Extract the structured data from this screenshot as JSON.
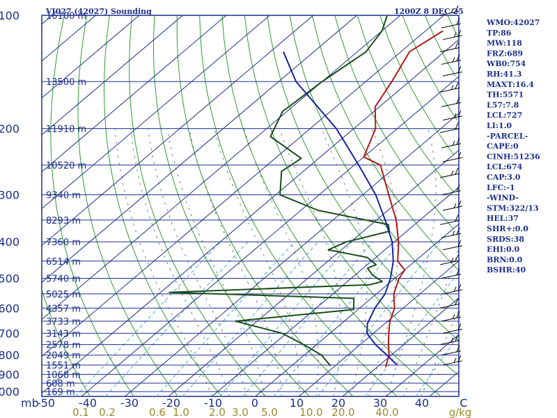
{
  "header": {
    "title": "VI027 (42027) Sounding",
    "time": "1200Z  8 DEC 25"
  },
  "colors": {
    "isobar": "#1c2f8a",
    "isotherm": "#1c2f8a",
    "dry_adiabat": "#2e9b2e",
    "moist_adiabat": "#777777",
    "mixing_ratio": "#4aa6d8",
    "temperature": "#b01818",
    "dewpoint": "#1a4d1a",
    "parcel": "#1622a0",
    "wind_barbs": "#000000"
  },
  "indices": [
    "WMO:42027",
    "TP:86",
    "MW:118",
    "FRZ:689",
    "WB0:754",
    "RH:41.3",
    "MAXT:16.4",
    "TH:5571",
    "L57:7.8",
    "LCL:727",
    "LI:1.0",
    "-PARCEL-",
    "CAPE:0",
    "CINH:51236",
    "LCL:674",
    "CAP:3.0",
    "LFC:-1",
    "-WIND-",
    "STM:322/13",
    "HEL:37",
    "SHR+:0.0",
    "SRDS:38",
    "EHI:0.0",
    "BRN:0.0",
    "BSHR:40"
  ],
  "chart_data": {
    "type": "line",
    "subtype": "skew-T log-P sounding",
    "pressure_labels": [
      "100",
      "200",
      "300",
      "400",
      "500",
      "600",
      "700",
      "800",
      "900",
      "1000"
    ],
    "pressure_unit_label": "mb",
    "height_labels": [
      {
        "p": 100,
        "text": "16100 m"
      },
      {
        "p": 150,
        "text": "13500 m"
      },
      {
        "p": 200,
        "text": "11910 m"
      },
      {
        "p": 250,
        "text": "10520 m"
      },
      {
        "p": 300,
        "text": "9340 m"
      },
      {
        "p": 350,
        "text": "8293 m"
      },
      {
        "p": 400,
        "text": "7360 m"
      },
      {
        "p": 450,
        "text": "6514 m"
      },
      {
        "p": 500,
        "text": "5740 m"
      },
      {
        "p": 550,
        "text": "5025 m"
      },
      {
        "p": 600,
        "text": "4357 m"
      },
      {
        "p": 650,
        "text": "3733 m"
      },
      {
        "p": 700,
        "text": "3143 m"
      },
      {
        "p": 750,
        "text": "2578 m"
      },
      {
        "p": 800,
        "text": "2049 m"
      },
      {
        "p": 850,
        "text": "1551 m"
      },
      {
        "p": 900,
        "text": "1068 m"
      },
      {
        "p": 950,
        "text": "608 m"
      },
      {
        "p": 1000,
        "text": "169 m"
      }
    ],
    "temperature_labels": [
      "-50",
      "-40",
      "-30",
      "-20",
      "-10",
      "0",
      "10",
      "20",
      "30",
      "40",
      "C"
    ],
    "mixing_ratio_labels": [
      "0.1",
      "0.2",
      "0.6",
      "1.0",
      "2.0",
      "3.0",
      "5.0",
      "10.0",
      "20.0",
      "40.0",
      "g/kg"
    ],
    "mixing_ratio_values": [
      0.1,
      0.2,
      0.6,
      1.0,
      2.0,
      3.0,
      5.0,
      10.0,
      20.0,
      40.0
    ],
    "xlim": [
      -50,
      50
    ],
    "ylim": [
      1000,
      100
    ],
    "series": [
      {
        "key": "temperature",
        "p": [
          862,
          800,
          750,
          700,
          650,
          600,
          550,
          500,
          475,
          450,
          400,
          350,
          300,
          250,
          238,
          200,
          175,
          150,
          125,
          110,
          100
        ],
        "t": [
          22,
          19.5,
          16.5,
          13.5,
          10.5,
          8,
          4,
          1,
          0,
          -4,
          -9,
          -15.5,
          -24,
          -34,
          -40,
          -45,
          -51,
          -54,
          -58,
          -56,
          -55
        ]
      },
      {
        "key": "dewpoint",
        "p": [
          855,
          800,
          750,
          700,
          650,
          605,
          565,
          545,
          520,
          510,
          490,
          470,
          460,
          440,
          420,
          400,
          375,
          360,
          330,
          300,
          260,
          240,
          210,
          180,
          150,
          125,
          110,
          100
        ],
        "td": [
          9,
          4,
          -3,
          -11,
          -25,
          -1,
          -4,
          -48,
          -4,
          -2,
          -6,
          -9,
          -8,
          -12,
          -23,
          -21,
          -14,
          -16,
          -36,
          -49,
          -55,
          -54,
          -67,
          -71,
          -70,
          -68,
          -70,
          -73
        ]
      },
      {
        "key": "parcel",
        "p": [
          850,
          800,
          750,
          700,
          660,
          600,
          550,
          500,
          450,
          400,
          350,
          300,
          250,
          200,
          150,
          125
        ],
        "t": [
          24,
          19,
          13.5,
          8.5,
          6,
          3.5,
          2,
          -1,
          -5,
          -10.5,
          -18,
          -27,
          -39,
          -54,
          -76,
          -87
        ]
      }
    ],
    "wind_barb_pressures": [
      100,
      108,
      116,
      125,
      135,
      145,
      160,
      175,
      190,
      205,
      225,
      245,
      270,
      300,
      330,
      360,
      390,
      420,
      460,
      500,
      550,
      600,
      650,
      700,
      750,
      800,
      850
    ],
    "grid": true
  }
}
